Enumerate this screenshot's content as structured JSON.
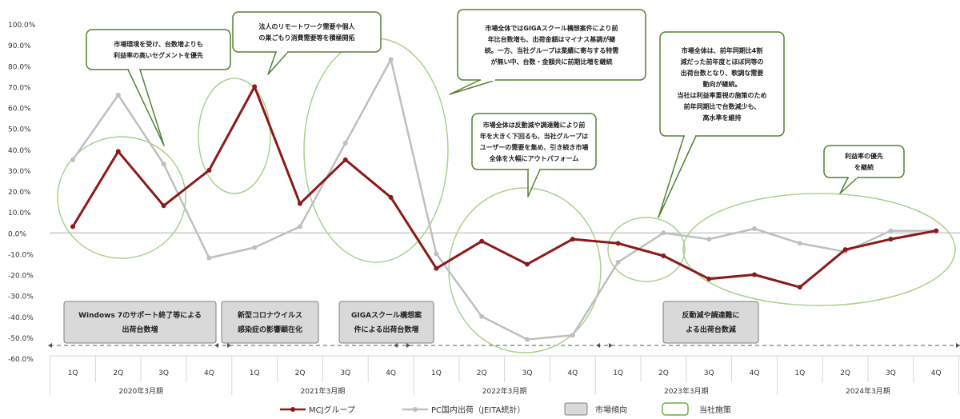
{
  "chart_data": {
    "type": "line",
    "ylim": [
      -60,
      100
    ],
    "yticks": [
      "100.0%",
      "90.0%",
      "80.0%",
      "70.0%",
      "60.0%",
      "50.0%",
      "40.0%",
      "30.0%",
      "20.0%",
      "10.0%",
      "0.0%",
      "-10.0%",
      "-20.0%",
      "-30.0%",
      "-40.0%",
      "-50.0%",
      "-60.0%"
    ],
    "quarters": [
      "1Q",
      "2Q",
      "3Q",
      "4Q",
      "1Q",
      "2Q",
      "3Q",
      "4Q",
      "1Q",
      "2Q",
      "3Q",
      "4Q",
      "1Q",
      "2Q",
      "3Q",
      "4Q",
      "1Q",
      "2Q",
      "3Q",
      "4Q"
    ],
    "years": [
      "2020年3月期",
      "2021年3月期",
      "2022年3月期",
      "2023年3月期",
      "2024年3月期"
    ],
    "series": [
      {
        "name": "MCJグループ",
        "color": "#8b1a1a",
        "values": [
          3,
          39,
          13,
          30,
          70,
          14,
          35,
          17,
          -17,
          -4,
          -15,
          -3,
          -5,
          -11,
          -22,
          -20,
          -26,
          -8,
          -3,
          1
        ]
      },
      {
        "name": "PC国内出荷（JEITA統計）",
        "color": "#bfbfbf",
        "values": [
          35,
          66,
          33,
          -12,
          -7,
          3,
          43,
          83,
          -10,
          -40,
          -51,
          -49,
          -14,
          0,
          -3,
          2,
          -5,
          -9,
          1,
          1
        ]
      }
    ],
    "legend": {
      "position": "bottom",
      "market_label": "市場傾向",
      "company_label": "当社施策"
    },
    "market_trends": [
      {
        "lines": [
          "Windows 7のサポート終了等による",
          "出荷台数増"
        ]
      },
      {
        "lines": [
          "新型コロナウイルス",
          "感染症の影響顕在化"
        ]
      },
      {
        "lines": [
          "GIGAスクール構想案",
          "件による出荷台数増"
        ]
      },
      {
        "lines": [
          "反動減や調達難に",
          "よる出荷台数減"
        ]
      }
    ],
    "callouts": [
      {
        "lines": [
          "市場環境を受け、台数増よりも",
          "利益率の高いセグメントを優先"
        ]
      },
      {
        "lines": [
          "法人のリモートワーク需要や個人",
          "の巣ごもり消費需要等を積極開拓"
        ]
      },
      {
        "lines": [
          "市場全体ではGIGAスクール構想案件により前",
          "年比台数増も、出荷金額はマイナス基調が継",
          "続。一方、当社グループは業績に寄与する特需",
          "が無い中、台数・金額共に前期比増を継続"
        ]
      },
      {
        "lines": [
          "市場全体は反動減や調達難により前",
          "年を大きく下回るも、当社グループは",
          "ユーザーの需要を集め、引き続き市場",
          "全体を大幅にアウトパフォーム"
        ]
      },
      {
        "lines": [
          "市場全体は、前年同期比4割",
          "減だった前年度とほぼ同等の",
          "出荷台数となり、軟調な需要",
          "動向が継続。",
          "当社は利益率重視の施策のため",
          "前年同期比で台数減少も、",
          "高水準を維持"
        ]
      },
      {
        "lines": [
          "利益率の優先",
          "を継続"
        ]
      }
    ]
  }
}
